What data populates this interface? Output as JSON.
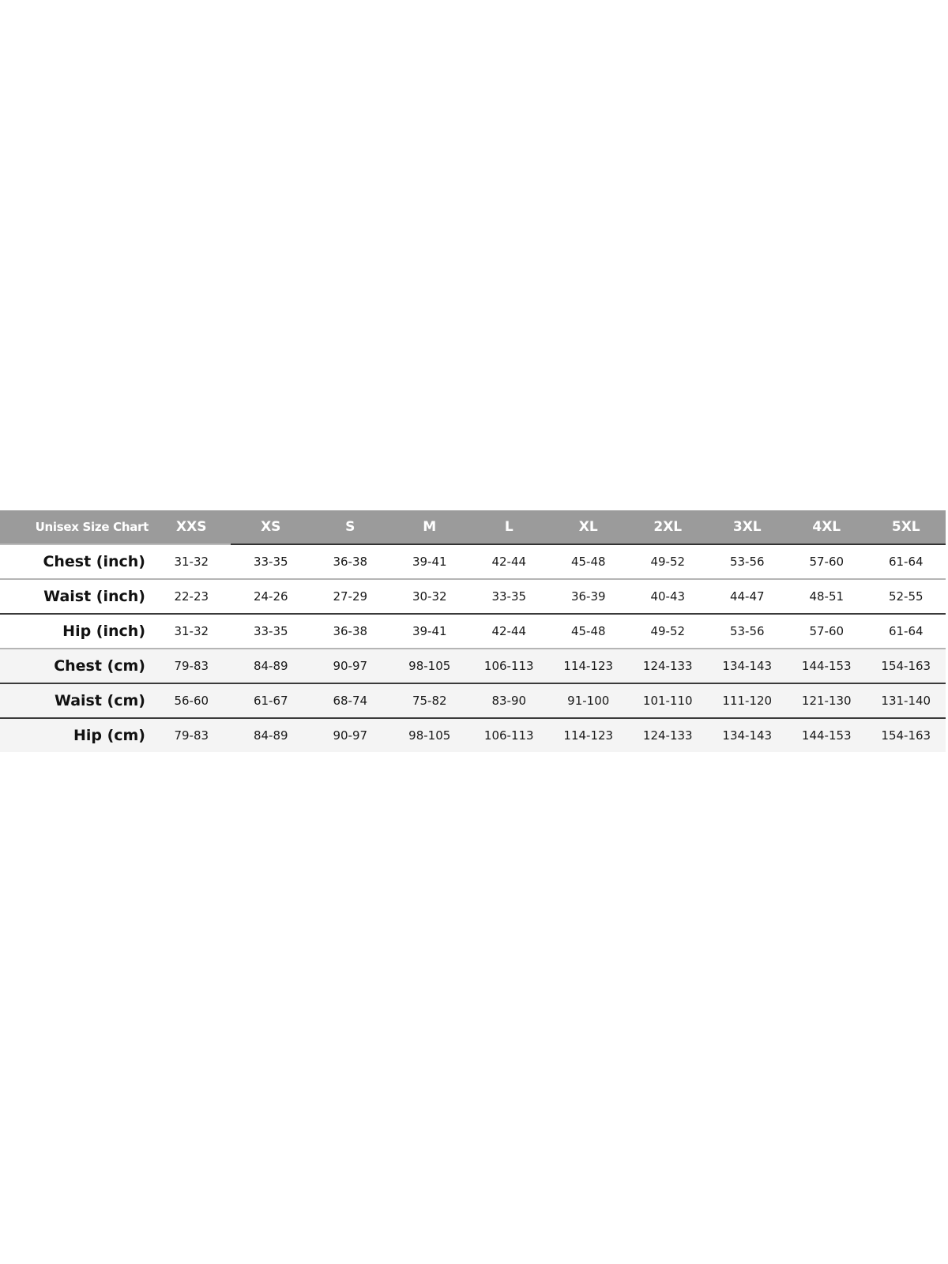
{
  "table": {
    "title": "Unisex Size Chart",
    "sizes": [
      "XXS",
      "XS",
      "S",
      "M",
      "L",
      "XL",
      "2XL",
      "3XL",
      "4XL",
      "5XL"
    ],
    "rows": [
      {
        "label": "Chest (inch)",
        "values": [
          "31-32",
          "33-35",
          "36-38",
          "39-41",
          "42-44",
          "45-48",
          "49-52",
          "53-56",
          "57-60",
          "61-64"
        ]
      },
      {
        "label": "Waist (inch)",
        "values": [
          "22-23",
          "24-26",
          "27-29",
          "30-32",
          "33-35",
          "36-39",
          "40-43",
          "44-47",
          "48-51",
          "52-55"
        ]
      },
      {
        "label": "Hip (inch)",
        "values": [
          "31-32",
          "33-35",
          "36-38",
          "39-41",
          "42-44",
          "45-48",
          "49-52",
          "53-56",
          "57-60",
          "61-64"
        ]
      },
      {
        "label": "Chest (cm)",
        "values": [
          "79-83",
          "84-89",
          "90-97",
          "98-105",
          "106-113",
          "114-123",
          "124-133",
          "134-143",
          "144-153",
          "154-163"
        ]
      },
      {
        "label": "Waist (cm)",
        "values": [
          "56-60",
          "61-67",
          "68-74",
          "75-82",
          "83-90",
          "91-100",
          "101-110",
          "111-120",
          "121-130",
          "131-140"
        ]
      },
      {
        "label": "Hip (cm)",
        "values": [
          "79-83",
          "84-89",
          "90-97",
          "98-105",
          "106-113",
          "114-123",
          "124-133",
          "134-143",
          "144-153",
          "154-163"
        ]
      }
    ],
    "colors": {
      "header_bg": "#9b9b9b",
      "header_text": "#ffffff",
      "alt_row_bg": "#f4f4f4",
      "text": "#111111"
    }
  }
}
